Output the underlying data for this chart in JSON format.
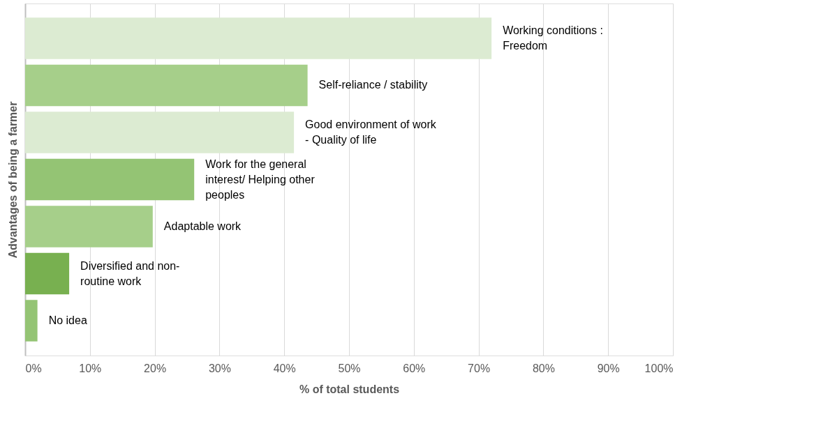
{
  "chart_data": {
    "type": "bar",
    "orientation": "horizontal",
    "categories": [
      "Working conditions : Freedom",
      "Self-reliance / stability",
      "Good environment of work - Quality of life",
      "Work for the general interest/ Helping other peoples",
      "Adaptable work",
      "Diversified and non-routine work",
      "No idea"
    ],
    "values": [
      72,
      43.6,
      41.5,
      26.1,
      19.7,
      6.8,
      1.9
    ],
    "colors": [
      "#dcebd2",
      "#a6cf8a",
      "#dcebd2",
      "#94c474",
      "#a6cf8a",
      "#78b050",
      "#94c474"
    ],
    "xlabel": "% of total students",
    "ylabel": "Advantages of being a farmer",
    "xlim": [
      0,
      100
    ],
    "xticks": [
      {
        "value": 0,
        "label": "0%"
      },
      {
        "value": 10,
        "label": "10%"
      },
      {
        "value": 20,
        "label": "20%"
      },
      {
        "value": 30,
        "label": "30%"
      },
      {
        "value": 40,
        "label": "40%"
      },
      {
        "value": 50,
        "label": "50%"
      },
      {
        "value": 60,
        "label": "60%"
      },
      {
        "value": 70,
        "label": "70%"
      },
      {
        "value": 80,
        "label": "80%"
      },
      {
        "value": 90,
        "label": "90%"
      },
      {
        "value": 100,
        "label": "100%"
      }
    ],
    "grid": "x"
  }
}
